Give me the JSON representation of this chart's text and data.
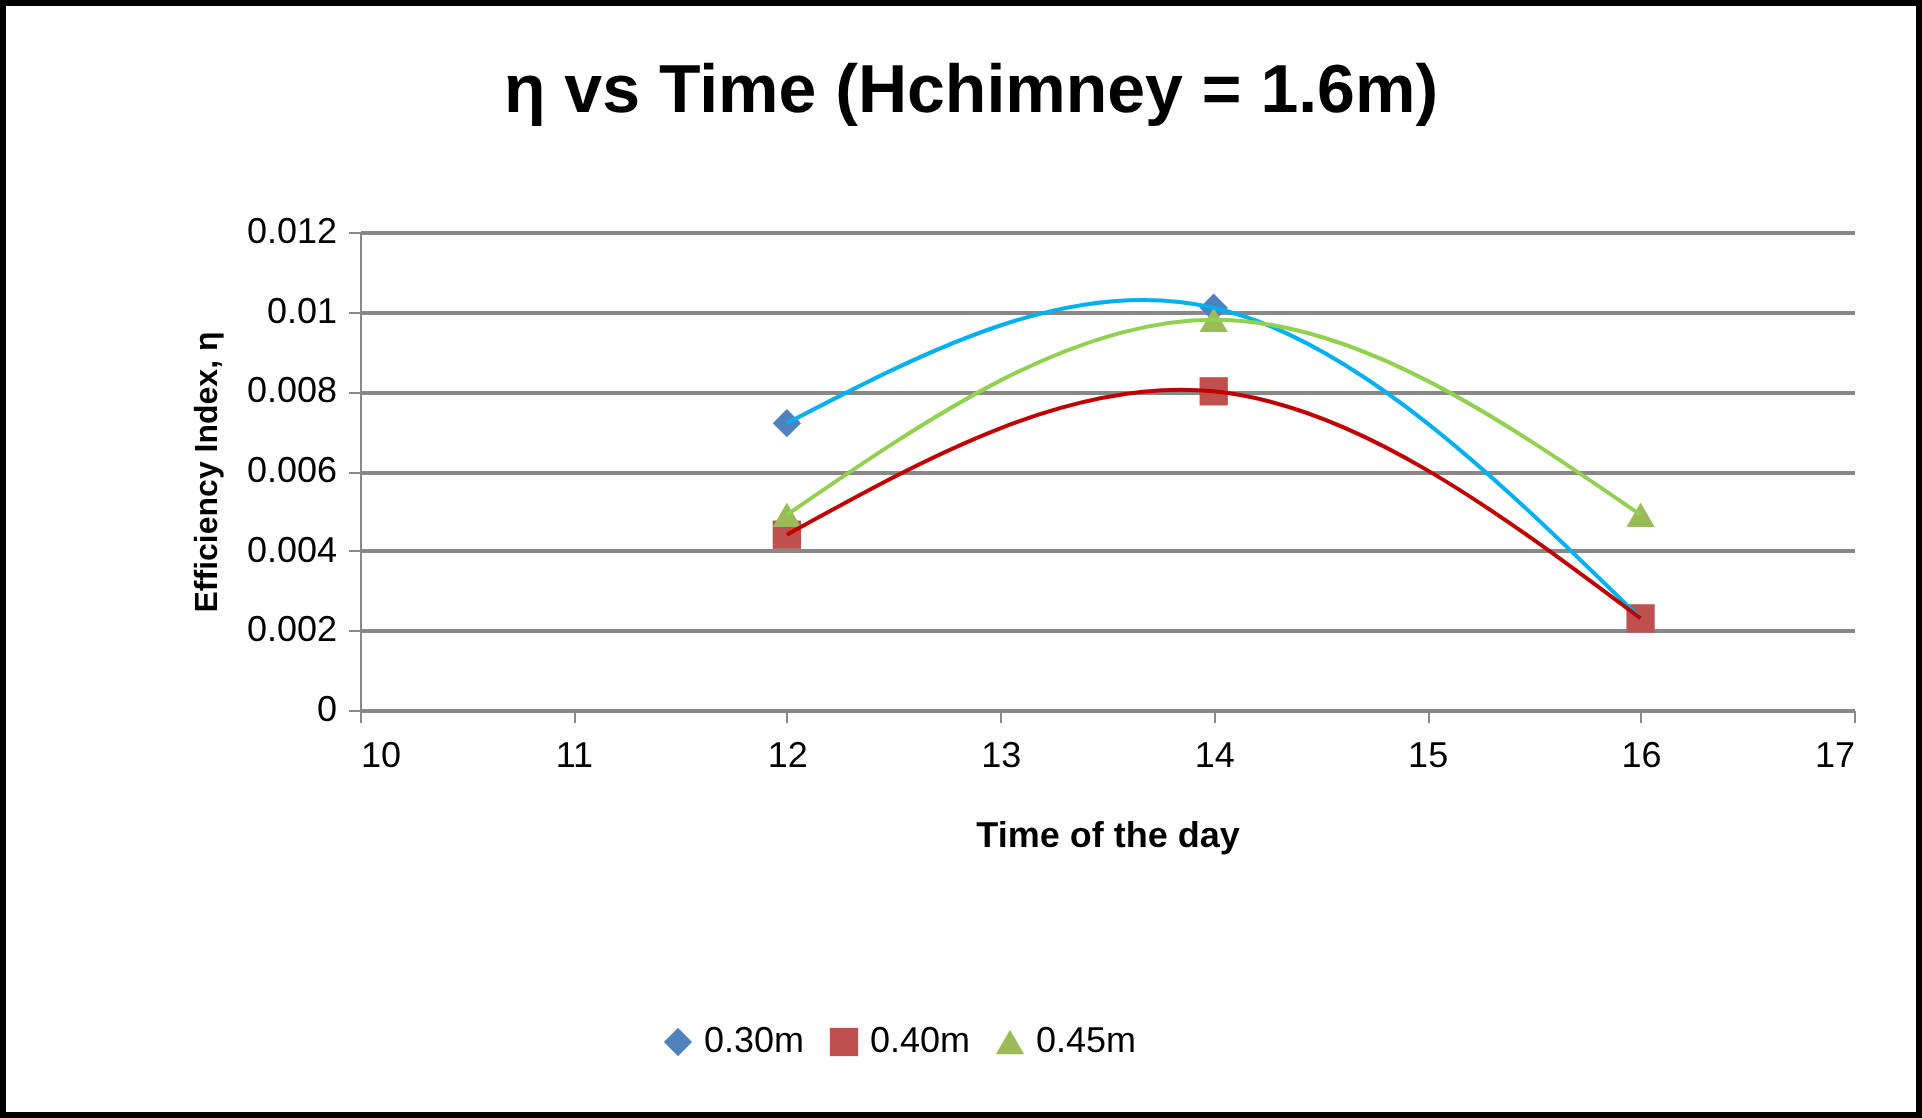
{
  "chart_data": {
    "type": "scatter",
    "title": "η vs Time (Hchimney = 1.6m)",
    "xlabel": "Time of the day",
    "ylabel": "Efficiency Index, η",
    "x": [
      12,
      14,
      16
    ],
    "series": [
      {
        "name": "0.30m",
        "color": "#4f81bd",
        "marker": "diamond",
        "values": [
          0.0072,
          0.0101,
          null
        ]
      },
      {
        "name": "0.40m",
        "color": "#c0504d",
        "marker": "square",
        "values": [
          0.0044,
          0.008,
          0.0023
        ]
      },
      {
        "name": "0.45m",
        "color": "#9bbb59",
        "marker": "triangle",
        "values": [
          0.0049,
          0.0098,
          0.0049
        ]
      },
      {
        "type": "line",
        "color": "#00b0f0",
        "marker": "none",
        "values": [
          0.0072,
          0.0101,
          0.0023
        ]
      },
      {
        "type": "line",
        "color": "#c00000",
        "marker": "none",
        "values": [
          0.0044,
          0.008,
          0.0023
        ]
      },
      {
        "type": "line",
        "color": "#92d050",
        "marker": "none",
        "values": [
          0.0049,
          0.0098,
          0.0049
        ]
      }
    ],
    "xlim": [
      10,
      17
    ],
    "xticks": [
      10,
      11,
      12,
      13,
      14,
      15,
      16,
      17
    ],
    "ylim": [
      0,
      0.012
    ],
    "yticks": [
      0,
      0.002,
      0.004,
      0.006,
      0.008,
      0.01,
      0.012
    ],
    "grid": "y",
    "legend": "bottom"
  }
}
